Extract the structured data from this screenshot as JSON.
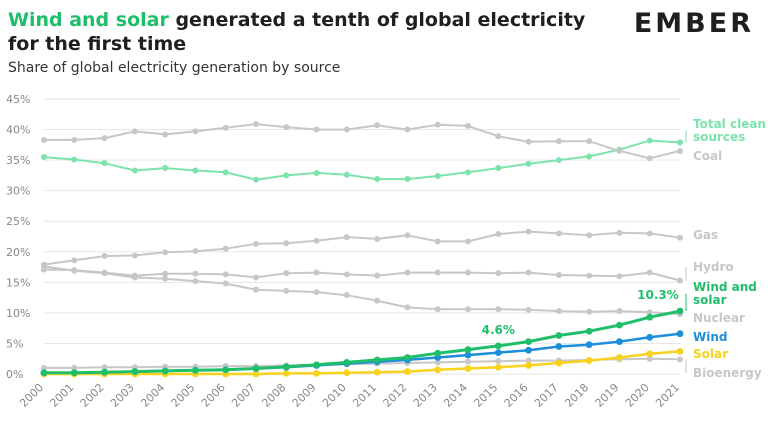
{
  "header": {
    "title_highlight": "Wind and solar",
    "title_rest": " generated a tenth of global electricity for the first time",
    "subtitle": "Share of global electricity generation by source",
    "logo": "EMBER"
  },
  "chart_data": {
    "type": "line",
    "title": "Wind and solar generated a tenth of global electricity for the first time",
    "subtitle": "Share of global electricity generation by source",
    "xlabel": "",
    "ylabel": "",
    "ylim": [
      0,
      45
    ],
    "y_ticks": [
      "0%",
      "5%",
      "10%",
      "15%",
      "20%",
      "25%",
      "30%",
      "35%",
      "40%",
      "45%"
    ],
    "x": [
      "2000",
      "2001",
      "2002",
      "2003",
      "2004",
      "2005",
      "2006",
      "2007",
      "2008",
      "2009",
      "2010",
      "2011",
      "2012",
      "2013",
      "2014",
      "2015",
      "2016",
      "2017",
      "2018",
      "2019",
      "2020",
      "2021"
    ],
    "series": [
      {
        "name": "Total clean sources",
        "label_lines": [
          "Total clean",
          "sources"
        ],
        "color": "#7de3ac",
        "width": 2,
        "values": [
          35.5,
          35.1,
          34.5,
          33.3,
          33.7,
          33.3,
          33.0,
          31.8,
          32.5,
          32.9,
          32.6,
          31.9,
          31.9,
          32.4,
          33.0,
          33.7,
          34.4,
          35.0,
          35.6,
          36.7,
          38.2,
          37.9
        ]
      },
      {
        "name": "Coal",
        "label_lines": [
          "Coal"
        ],
        "color": "#c7c7c7",
        "width": 2,
        "values": [
          38.3,
          38.3,
          38.6,
          39.7,
          39.2,
          39.7,
          40.3,
          40.9,
          40.4,
          40.0,
          40.0,
          40.7,
          40.0,
          40.8,
          40.6,
          38.9,
          38.0,
          38.1,
          38.1,
          36.5,
          35.3,
          36.5
        ]
      },
      {
        "name": "Gas",
        "label_lines": [
          "Gas"
        ],
        "color": "#c7c7c7",
        "width": 2,
        "values": [
          17.9,
          18.6,
          19.3,
          19.4,
          19.9,
          20.1,
          20.5,
          21.3,
          21.4,
          21.8,
          22.4,
          22.1,
          22.7,
          21.7,
          21.7,
          22.9,
          23.3,
          23.0,
          22.7,
          23.1,
          23.0,
          22.3
        ]
      },
      {
        "name": "Hydro",
        "label_lines": [
          "Hydro"
        ],
        "color": "#c7c7c7",
        "width": 2,
        "values": [
          17.1,
          17.0,
          16.6,
          16.1,
          16.4,
          16.4,
          16.3,
          15.8,
          16.5,
          16.6,
          16.3,
          16.1,
          16.6,
          16.6,
          16.6,
          16.5,
          16.6,
          16.2,
          16.1,
          16.0,
          16.6,
          15.3
        ]
      },
      {
        "name": "Nuclear",
        "label_lines": [
          "Nuclear"
        ],
        "color": "#c7c7c7",
        "width": 2,
        "values": [
          17.6,
          16.9,
          16.5,
          15.8,
          15.6,
          15.2,
          14.8,
          13.8,
          13.6,
          13.4,
          12.9,
          12.0,
          10.9,
          10.6,
          10.6,
          10.6,
          10.5,
          10.3,
          10.2,
          10.3,
          10.1,
          9.8
        ]
      },
      {
        "name": "Bioenergy",
        "label_lines": [
          "Bioenergy"
        ],
        "color": "#c7c7c7",
        "width": 2,
        "values": [
          1.0,
          1.0,
          1.1,
          1.1,
          1.2,
          1.2,
          1.3,
          1.3,
          1.4,
          1.5,
          1.6,
          1.7,
          1.8,
          1.9,
          2.0,
          2.1,
          2.2,
          2.2,
          2.3,
          2.4,
          2.5,
          2.4
        ]
      },
      {
        "name": "Solar",
        "label_lines": [
          "Solar"
        ],
        "color": "#f8d21c",
        "width": 2.5,
        "values": [
          0.0,
          0.0,
          0.0,
          0.0,
          0.0,
          0.0,
          0.0,
          0.0,
          0.1,
          0.1,
          0.2,
          0.3,
          0.4,
          0.7,
          0.9,
          1.1,
          1.4,
          1.8,
          2.2,
          2.7,
          3.3,
          3.7
        ]
      },
      {
        "name": "Wind",
        "label_lines": [
          "Wind"
        ],
        "color": "#1c8edb",
        "width": 2.5,
        "values": [
          0.2,
          0.2,
          0.3,
          0.4,
          0.5,
          0.6,
          0.7,
          0.9,
          1.1,
          1.4,
          1.7,
          2.0,
          2.3,
          2.7,
          3.1,
          3.5,
          3.9,
          4.5,
          4.8,
          5.3,
          6.0,
          6.6
        ]
      },
      {
        "name": "Wind and solar",
        "label_lines": [
          "Wind and",
          "solar"
        ],
        "color": "#1fbf6a",
        "width": 3,
        "values": [
          0.2,
          0.2,
          0.3,
          0.4,
          0.5,
          0.6,
          0.7,
          0.9,
          1.2,
          1.5,
          1.9,
          2.3,
          2.7,
          3.4,
          4.0,
          4.6,
          5.3,
          6.3,
          7.0,
          8.0,
          9.3,
          10.3
        ]
      }
    ],
    "annotations": [
      {
        "series": "Wind and solar",
        "year": "2015",
        "text": "4.6%"
      },
      {
        "series": "Wind and solar",
        "year": "2021",
        "text": "10.3%"
      }
    ]
  }
}
